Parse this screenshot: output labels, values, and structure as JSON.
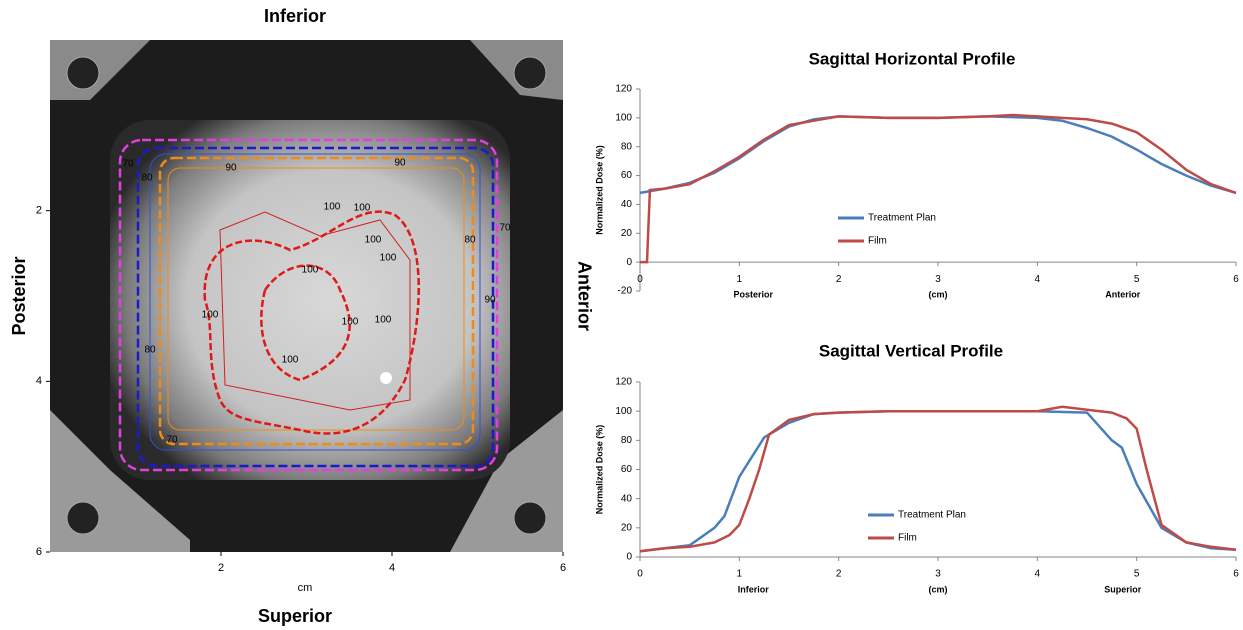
{
  "chart_data": [
    {
      "type": "dose-map",
      "top_label": "Inferior",
      "bottom_label": "Superior",
      "left_label": "Posterior",
      "right_label": "Anterior",
      "x_label": "cm",
      "xlim": [
        0,
        6
      ],
      "xticks": [
        2,
        4,
        6
      ],
      "ylim": [
        0,
        6
      ],
      "yticks": [
        2,
        4,
        6
      ],
      "contour_labels": [
        "70",
        "80",
        "90",
        "90",
        "70",
        "80",
        "100",
        "100",
        "100",
        "100",
        "100",
        "100",
        "90",
        "80",
        "70",
        "100",
        "100",
        "100"
      ]
    },
    {
      "type": "line",
      "title": "Sagittal Horizontal Profile",
      "y_label": "Normalized Dose (%)",
      "x_axis_labels": [
        "Posterior",
        "(cm)",
        "Anterior"
      ],
      "xlim": [
        0,
        6
      ],
      "xticks": [
        0,
        1,
        2,
        3,
        4,
        5,
        6
      ],
      "ylim": [
        -20,
        120
      ],
      "yticks": [
        -20,
        0,
        20,
        40,
        60,
        80,
        100,
        120
      ],
      "grid": false,
      "series": [
        {
          "name": "Treatment Plan",
          "color": "#4a7ebb",
          "x": [
            0,
            0.25,
            0.5,
            0.75,
            1,
            1.25,
            1.5,
            1.75,
            2,
            2.5,
            3,
            3.5,
            4,
            4.25,
            4.5,
            4.75,
            5,
            5.25,
            5.5,
            5.75,
            6
          ],
          "values": [
            48,
            51,
            55,
            62,
            72,
            84,
            94,
            99,
            101,
            100,
            100,
            101,
            100,
            98,
            93,
            87,
            78,
            68,
            60,
            53,
            48
          ]
        },
        {
          "name": "Film",
          "color": "#be4b48",
          "x": [
            0,
            0.07,
            0.1,
            0.25,
            0.5,
            0.75,
            1,
            1.25,
            1.5,
            1.75,
            2,
            2.5,
            3,
            3.5,
            3.75,
            4,
            4.25,
            4.5,
            4.75,
            5,
            5.25,
            5.5,
            5.75,
            6
          ],
          "values": [
            0,
            0,
            50,
            51,
            54,
            63,
            73,
            85,
            95,
            98,
            101,
            100,
            100,
            101,
            102,
            101,
            100,
            99,
            96,
            90,
            78,
            64,
            54,
            48
          ]
        }
      ]
    },
    {
      "type": "line",
      "title": "Sagittal Vertical Profile",
      "y_label": "Normalized Dose (%)",
      "x_axis_labels": [
        "Inferior",
        "(cm)",
        "Superior"
      ],
      "xlim": [
        0,
        6
      ],
      "xticks": [
        0,
        1,
        2,
        3,
        4,
        5,
        6
      ],
      "ylim": [
        0,
        120
      ],
      "yticks": [
        0,
        20,
        40,
        60,
        80,
        100,
        120
      ],
      "grid": false,
      "series": [
        {
          "name": "Treatment Plan",
          "color": "#4a7ebb",
          "x": [
            0,
            0.25,
            0.5,
            0.75,
            0.85,
            1,
            1.25,
            1.5,
            1.75,
            2,
            2.5,
            3,
            3.5,
            4,
            4.5,
            4.75,
            4.85,
            5,
            5.25,
            5.5,
            5.75,
            6
          ],
          "values": [
            4,
            6,
            8,
            20,
            28,
            55,
            82,
            92,
            98,
            99,
            100,
            100,
            100,
            100,
            99,
            80,
            75,
            50,
            20,
            10,
            6,
            5
          ]
        },
        {
          "name": "Film",
          "color": "#be4b48",
          "x": [
            0,
            0.25,
            0.5,
            0.75,
            0.9,
            1,
            1.1,
            1.2,
            1.3,
            1.5,
            1.75,
            2,
            2.5,
            3,
            3.5,
            4,
            4.25,
            4.5,
            4.75,
            4.9,
            5,
            5.1,
            5.25,
            5.5,
            5.75,
            6
          ],
          "values": [
            4,
            6,
            7,
            10,
            15,
            22,
            40,
            60,
            84,
            94,
            98,
            99,
            100,
            100,
            100,
            100,
            103,
            101,
            99,
            95,
            88,
            60,
            22,
            10,
            7,
            5
          ]
        }
      ]
    }
  ]
}
